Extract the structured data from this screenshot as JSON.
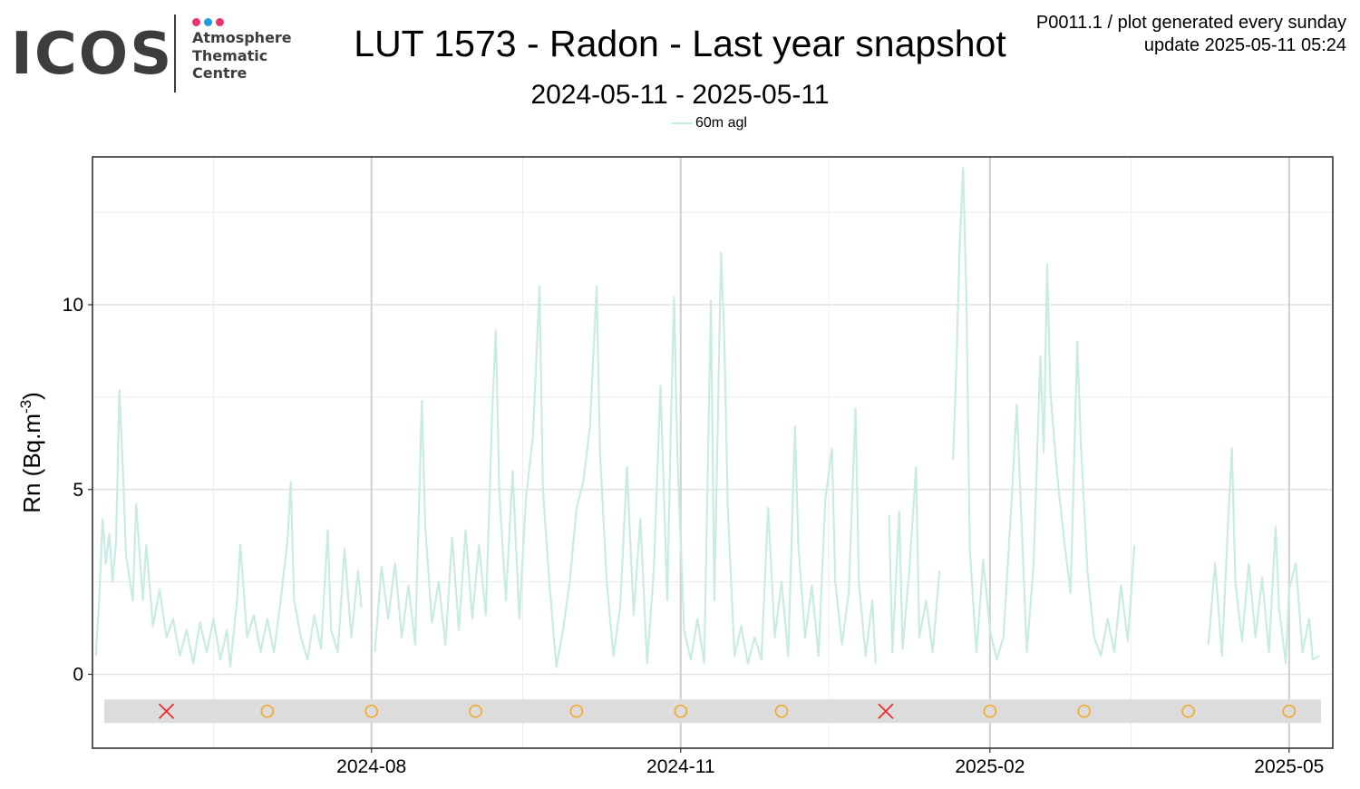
{
  "logo": {
    "word": "ICOS",
    "lines": [
      "Atmosphere",
      "Thematic",
      "Centre"
    ],
    "dot_colors": [
      "#e8336b",
      "#1f9be0",
      "#e8336b"
    ]
  },
  "header": {
    "title": "LUT 1573 - Radon - Last year snapshot",
    "subtitle": "2024-05-11 - 2025-05-11",
    "meta_line1": "P0011.1 / plot generated every sunday",
    "meta_line2": "update  2025-05-11 05:24"
  },
  "chart_data": {
    "type": "line",
    "title": "LUT 1573 - Radon - Last year snapshot",
    "subtitle": "2024-05-11 - 2025-05-11",
    "ylabel_base": "Rn (Bq.m",
    "ylabel_sup": "-3",
    "ylabel_end": ")",
    "xlabel": "",
    "ylim": [
      -2,
      14
    ],
    "xlim": [
      "2024-05-10",
      "2025-05-14"
    ],
    "yticks": [
      0,
      5,
      10
    ],
    "xticks": [
      "2024-08",
      "2024-11",
      "2025-02",
      "2025-05"
    ],
    "xtick_dates": [
      "2024-08-01",
      "2024-11-01",
      "2025-02-01",
      "2025-05-01"
    ],
    "grid": true,
    "legend_position": "top-center",
    "series": [
      {
        "name": "60m agl",
        "color": "#c8ebe4",
        "points": [
          [
            "2024-05-11",
            0.5
          ],
          [
            "2024-05-12",
            2.0
          ],
          [
            "2024-05-13",
            4.2
          ],
          [
            "2024-05-14",
            3.0
          ],
          [
            "2024-05-15",
            3.8
          ],
          [
            "2024-05-16",
            2.5
          ],
          [
            "2024-05-17",
            3.6
          ],
          [
            "2024-05-18",
            7.7
          ],
          [
            "2024-05-19",
            5.6
          ],
          [
            "2024-05-20",
            3.2
          ],
          [
            "2024-05-22",
            2.0
          ],
          [
            "2024-05-23",
            4.6
          ],
          [
            "2024-05-25",
            2.0
          ],
          [
            "2024-05-26",
            3.5
          ],
          [
            "2024-05-28",
            1.3
          ],
          [
            "2024-05-30",
            2.3
          ],
          [
            "2024-06-01",
            1.0
          ],
          [
            "2024-06-03",
            1.5
          ],
          [
            "2024-06-05",
            0.5
          ],
          [
            "2024-06-07",
            1.2
          ],
          [
            "2024-06-09",
            0.3
          ],
          [
            "2024-06-11",
            1.4
          ],
          [
            "2024-06-13",
            0.6
          ],
          [
            "2024-06-15",
            1.5
          ],
          [
            "2024-06-17",
            0.4
          ],
          [
            "2024-06-19",
            1.2
          ],
          [
            "2024-06-20",
            0.2
          ],
          [
            "2024-06-22",
            2.0
          ],
          [
            "2024-06-23",
            3.5
          ],
          [
            "2024-06-25",
            1.0
          ],
          [
            "2024-06-27",
            1.6
          ],
          [
            "2024-06-29",
            0.6
          ],
          [
            "2024-07-01",
            1.5
          ],
          [
            "2024-07-03",
            0.6
          ],
          [
            "2024-07-05",
            2.0
          ],
          [
            "2024-07-07",
            3.6
          ],
          [
            "2024-07-08",
            5.2
          ],
          [
            "2024-07-09",
            2.0
          ],
          [
            "2024-07-11",
            1.0
          ],
          [
            "2024-07-13",
            0.4
          ],
          [
            "2024-07-15",
            1.6
          ],
          [
            "2024-07-17",
            0.7
          ],
          [
            "2024-07-19",
            3.9
          ],
          [
            "2024-07-20",
            1.2
          ],
          [
            "2024-07-22",
            0.6
          ],
          [
            "2024-07-24",
            3.4
          ],
          [
            "2024-07-26",
            1.0
          ],
          [
            "2024-07-28",
            2.8
          ],
          [
            "2024-07-29",
            1.8
          ],
          null,
          [
            "2024-08-02",
            0.6
          ],
          [
            "2024-08-04",
            2.9
          ],
          [
            "2024-08-06",
            1.5
          ],
          [
            "2024-08-08",
            3.0
          ],
          [
            "2024-08-10",
            1.0
          ],
          [
            "2024-08-12",
            2.4
          ],
          [
            "2024-08-14",
            0.8
          ],
          [
            "2024-08-16",
            7.4
          ],
          [
            "2024-08-17",
            4.0
          ],
          [
            "2024-08-19",
            1.4
          ],
          [
            "2024-08-21",
            2.5
          ],
          [
            "2024-08-23",
            0.8
          ],
          [
            "2024-08-25",
            3.7
          ],
          [
            "2024-08-27",
            1.2
          ],
          [
            "2024-08-29",
            3.9
          ],
          [
            "2024-08-31",
            1.5
          ],
          [
            "2024-09-02",
            3.5
          ],
          [
            "2024-09-04",
            1.6
          ],
          [
            "2024-09-06",
            7.3
          ],
          [
            "2024-09-07",
            9.3
          ],
          [
            "2024-09-08",
            5.0
          ],
          [
            "2024-09-10",
            2.0
          ],
          [
            "2024-09-12",
            5.5
          ],
          [
            "2024-09-14",
            1.5
          ],
          [
            "2024-09-16",
            4.8
          ],
          [
            "2024-09-18",
            6.4
          ],
          [
            "2024-09-20",
            10.5
          ],
          [
            "2024-09-21",
            5.0
          ],
          [
            "2024-09-23",
            2.4
          ],
          [
            "2024-09-25",
            0.2
          ],
          [
            "2024-09-27",
            1.2
          ],
          [
            "2024-09-29",
            2.5
          ],
          [
            "2024-10-01",
            4.5
          ],
          [
            "2024-10-03",
            5.2
          ],
          [
            "2024-10-05",
            6.7
          ],
          [
            "2024-10-07",
            10.5
          ],
          [
            "2024-10-08",
            6.0
          ],
          [
            "2024-10-10",
            2.5
          ],
          [
            "2024-10-12",
            0.5
          ],
          [
            "2024-10-14",
            1.8
          ],
          [
            "2024-10-16",
            5.6
          ],
          [
            "2024-10-18",
            1.6
          ],
          [
            "2024-10-20",
            4.2
          ],
          [
            "2024-10-22",
            0.3
          ],
          [
            "2024-10-24",
            2.8
          ],
          [
            "2024-10-26",
            7.8
          ],
          [
            "2024-10-28",
            2.0
          ],
          [
            "2024-10-29",
            6.5
          ],
          [
            "2024-10-30",
            10.2
          ],
          [
            "2024-10-31",
            6.0
          ],
          [
            "2024-11-02",
            1.2
          ],
          [
            "2024-11-04",
            0.4
          ],
          [
            "2024-11-06",
            1.5
          ],
          [
            "2024-11-08",
            0.3
          ],
          [
            "2024-11-10",
            10.1
          ],
          [
            "2024-11-11",
            2.0
          ],
          [
            "2024-11-13",
            11.4
          ],
          [
            "2024-11-14",
            9.0
          ],
          [
            "2024-11-15",
            4.5
          ],
          [
            "2024-11-17",
            0.5
          ],
          [
            "2024-11-19",
            1.3
          ],
          [
            "2024-11-21",
            0.3
          ],
          [
            "2024-11-23",
            1.0
          ],
          [
            "2024-11-25",
            0.4
          ],
          [
            "2024-11-27",
            4.5
          ],
          [
            "2024-11-29",
            1.0
          ],
          [
            "2024-12-01",
            2.5
          ],
          [
            "2024-12-03",
            0.5
          ],
          [
            "2024-12-05",
            6.7
          ],
          [
            "2024-12-06",
            3.5
          ],
          [
            "2024-12-08",
            1.0
          ],
          [
            "2024-12-10",
            2.4
          ],
          [
            "2024-12-12",
            0.5
          ],
          [
            "2024-12-14",
            4.7
          ],
          [
            "2024-12-16",
            6.1
          ],
          [
            "2024-12-17",
            2.5
          ],
          [
            "2024-12-19",
            0.8
          ],
          [
            "2024-12-21",
            2.2
          ],
          [
            "2024-12-23",
            7.2
          ],
          [
            "2024-12-24",
            2.5
          ],
          [
            "2024-12-26",
            0.5
          ],
          [
            "2024-12-28",
            2.0
          ],
          [
            "2024-12-29",
            0.3
          ],
          null,
          [
            "2025-01-02",
            4.3
          ],
          [
            "2025-01-03",
            0.6
          ],
          [
            "2025-01-05",
            4.4
          ],
          [
            "2025-01-06",
            0.7
          ],
          [
            "2025-01-08",
            2.8
          ],
          [
            "2025-01-10",
            5.6
          ],
          [
            "2025-01-11",
            1.0
          ],
          [
            "2025-01-13",
            2.0
          ],
          [
            "2025-01-15",
            0.6
          ],
          [
            "2025-01-17",
            2.8
          ],
          null,
          [
            "2025-01-21",
            5.8
          ],
          [
            "2025-01-22",
            8.3
          ],
          [
            "2025-01-23",
            11.6
          ],
          [
            "2025-01-24",
            13.7
          ],
          [
            "2025-01-25",
            10.2
          ],
          [
            "2025-01-26",
            3.4
          ],
          [
            "2025-01-28",
            0.6
          ],
          [
            "2025-01-30",
            3.1
          ],
          [
            "2025-02-01",
            1.2
          ],
          [
            "2025-02-03",
            0.4
          ],
          [
            "2025-02-05",
            1.0
          ],
          [
            "2025-02-07",
            4.0
          ],
          [
            "2025-02-09",
            7.3
          ],
          [
            "2025-02-10",
            5.0
          ],
          [
            "2025-02-12",
            0.6
          ],
          [
            "2025-02-14",
            3.0
          ],
          [
            "2025-02-16",
            8.6
          ],
          [
            "2025-02-17",
            6.0
          ],
          [
            "2025-02-18",
            11.1
          ],
          [
            "2025-02-19",
            7.6
          ],
          [
            "2025-02-21",
            5.4
          ],
          [
            "2025-02-23",
            3.7
          ],
          [
            "2025-02-25",
            2.2
          ],
          [
            "2025-02-27",
            9.0
          ],
          [
            "2025-02-28",
            6.3
          ],
          [
            "2025-03-02",
            2.8
          ],
          [
            "2025-03-04",
            1.0
          ],
          [
            "2025-03-06",
            0.5
          ],
          [
            "2025-03-08",
            1.5
          ],
          [
            "2025-03-10",
            0.6
          ],
          [
            "2025-03-12",
            2.4
          ],
          [
            "2025-03-14",
            0.9
          ],
          [
            "2025-03-16",
            3.5
          ],
          null,
          [
            "2025-04-07",
            0.8
          ],
          [
            "2025-04-09",
            3.0
          ],
          [
            "2025-04-11",
            0.5
          ],
          [
            "2025-04-13",
            4.4
          ],
          [
            "2025-04-14",
            6.1
          ],
          [
            "2025-04-15",
            2.5
          ],
          [
            "2025-04-17",
            0.9
          ],
          [
            "2025-04-19",
            3.0
          ],
          [
            "2025-04-21",
            1.0
          ],
          [
            "2025-04-23",
            2.6
          ],
          [
            "2025-04-25",
            0.6
          ],
          [
            "2025-04-27",
            4.0
          ],
          [
            "2025-04-28",
            1.8
          ],
          [
            "2025-04-30",
            0.3
          ],
          [
            "2025-05-01",
            2.3
          ],
          [
            "2025-05-03",
            3.0
          ],
          [
            "2025-05-05",
            0.6
          ],
          [
            "2025-05-07",
            1.5
          ],
          [
            "2025-05-08",
            0.4
          ],
          [
            "2025-05-10",
            0.5
          ]
        ]
      }
    ],
    "status_strip": {
      "value": -1,
      "color": "#dcdcdc",
      "markers": [
        {
          "date": "2024-06-01",
          "symbol": "x",
          "color": "#ee2222"
        },
        {
          "date": "2024-07-01",
          "symbol": "o",
          "color": "#f5a623"
        },
        {
          "date": "2024-08-01",
          "symbol": "o",
          "color": "#f5a623"
        },
        {
          "date": "2024-09-01",
          "symbol": "o",
          "color": "#f5a623"
        },
        {
          "date": "2024-10-01",
          "symbol": "o",
          "color": "#f5a623"
        },
        {
          "date": "2024-11-01",
          "symbol": "o",
          "color": "#f5a623"
        },
        {
          "date": "2024-12-01",
          "symbol": "o",
          "color": "#f5a623"
        },
        {
          "date": "2025-01-01",
          "symbol": "x",
          "color": "#ee2222"
        },
        {
          "date": "2025-02-01",
          "symbol": "o",
          "color": "#f5a623"
        },
        {
          "date": "2025-03-01",
          "symbol": "o",
          "color": "#f5a623"
        },
        {
          "date": "2025-04-01",
          "symbol": "o",
          "color": "#f5a623"
        },
        {
          "date": "2025-05-01",
          "symbol": "o",
          "color": "#f5a623"
        }
      ]
    }
  }
}
